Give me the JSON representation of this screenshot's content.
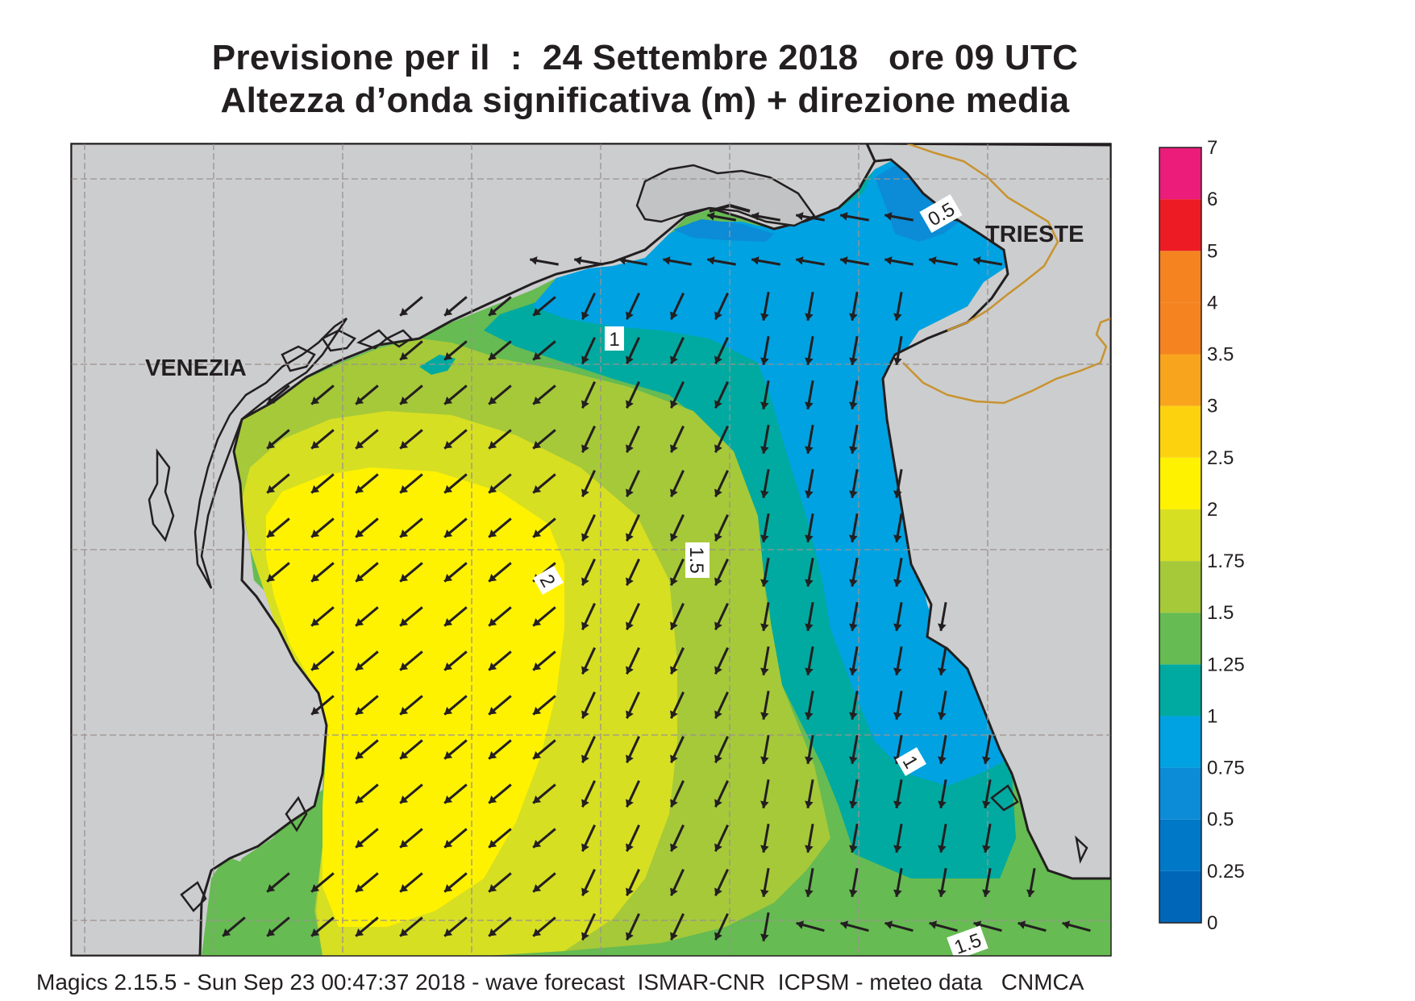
{
  "header": {
    "title_line1": "Previsione per il  :  24 Settembre 2018   ore 09 UTC",
    "title_line2": "Altezza d’onda significativa (m) + direzione media"
  },
  "map": {
    "places": [
      {
        "id": "venezia",
        "label": "VENEZIA"
      },
      {
        "id": "trieste",
        "label": "TRIESTE"
      }
    ],
    "contour_labels": [
      "0.5",
      "1",
      "1.5",
      "2",
      "1",
      "1.5"
    ],
    "colors": {
      "land": "#cccdce",
      "coast": "#231f20",
      "border": "#c8932f",
      "grid": "#9a9290"
    },
    "arrow_direction": "mainly south-west / south",
    "icon_arrow": "arrow-icon"
  },
  "legend": {
    "ticks": [
      "7",
      "6",
      "5",
      "4",
      "3.5",
      "3",
      "2.5",
      "2",
      "1.75",
      "1.5",
      "1.25",
      "1",
      "0.75",
      "0.5",
      "0.25",
      "0"
    ],
    "colors": [
      "#0067b8",
      "#0078c8",
      "#0c8bd6",
      "#00a2e2",
      "#00aaa0",
      "#66bb52",
      "#a6c939",
      "#d7df23",
      "#fff200",
      "#fcd20f",
      "#f8a51d",
      "#f58320",
      "#f58320",
      "#ed1c24",
      "#ec1c7b"
    ]
  },
  "footer": {
    "text": "Magics 2.15.5 - Sun Sep 23 00:47:37 2018 - wave forecast  ISMAR-CNR  ICPSM - meteo data   CNMCA"
  }
}
